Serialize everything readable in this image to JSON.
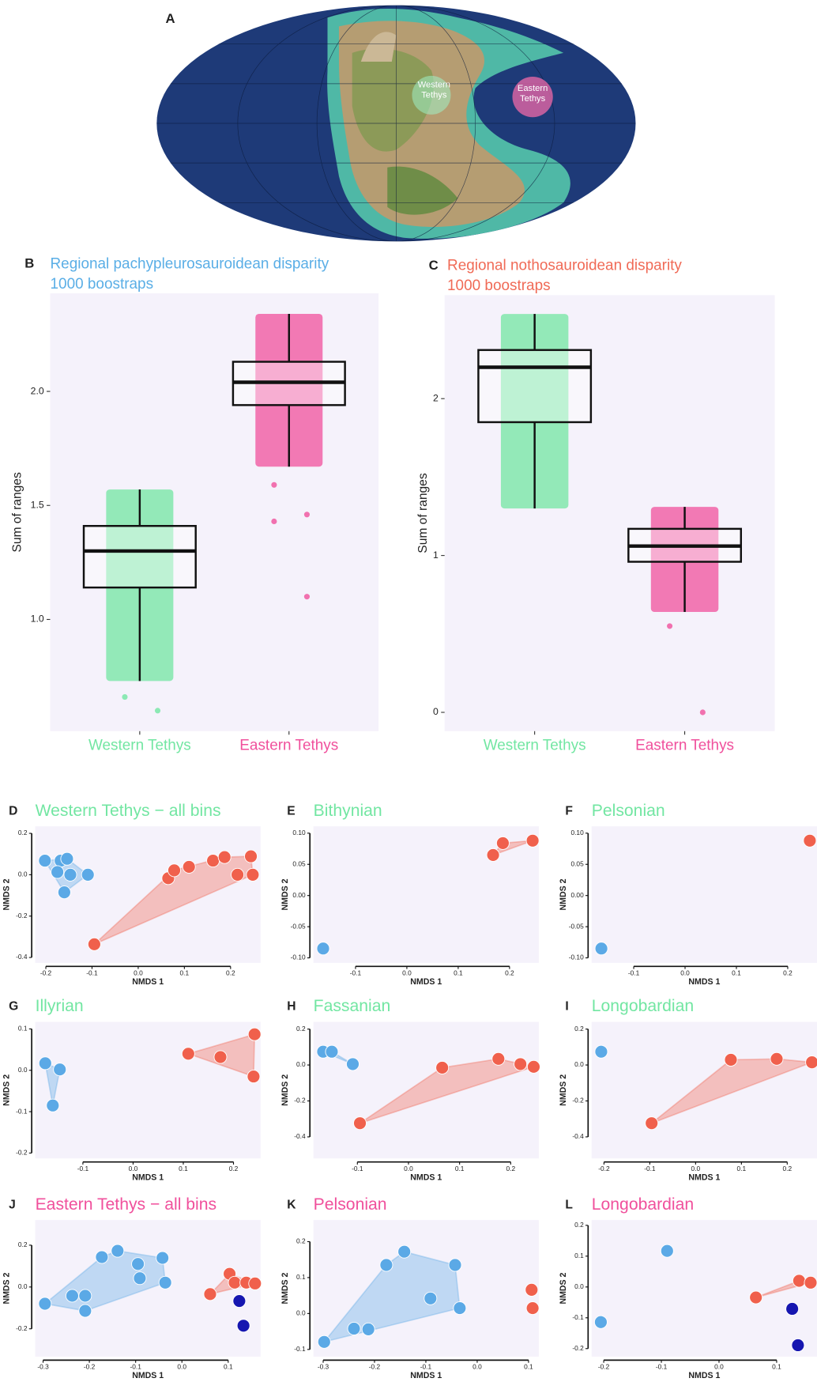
{
  "map": {
    "panel": "A",
    "regions": [
      "Western Tethys",
      "Eastern Tethys"
    ]
  },
  "chart_data": [
    {
      "type": "box",
      "panel": "B",
      "title": "Regional pachypleurosauroidean disparity",
      "subtitle": "1000 boostraps",
      "title_color": "#5aaee6",
      "ylabel": "Sum of ranges",
      "ylim": [
        0.51,
        2.43
      ],
      "yticks": [
        {
          "value": 1,
          "label": "1.0"
        },
        1.5,
        {
          "value": 2,
          "label": "2.0"
        }
      ],
      "categories": [
        "Western Tethys",
        "Eastern Tethys"
      ],
      "colors": [
        "#72e6a2",
        "#f0509c"
      ],
      "boxes": [
        {
          "whisker_low": 0.73,
          "q1": 1.14,
          "median": 1.3,
          "q3": 1.41,
          "whisker_high": 1.57,
          "outliers": [
            0.66,
            0.6
          ]
        },
        {
          "whisker_low": 1.67,
          "q1": 1.94,
          "median": 2.04,
          "q3": 2.13,
          "whisker_high": 2.34,
          "outliers": [
            1.59,
            1.46,
            1.43,
            1.1
          ]
        }
      ]
    },
    {
      "type": "box",
      "panel": "C",
      "title": "Regional nothosauroidean disparity",
      "subtitle": "1000 boostraps",
      "title_color": "#f06a56",
      "ylabel": "Sum of ranges",
      "ylim": [
        -0.12,
        2.66
      ],
      "yticks": [
        0,
        1,
        2
      ],
      "categories": [
        "Western Tethys",
        "Eastern Tethys"
      ],
      "colors": [
        "#72e6a2",
        "#f0509c"
      ],
      "boxes": [
        {
          "whisker_low": 1.3,
          "q1": 1.85,
          "median": 2.2,
          "q3": 2.31,
          "whisker_high": 2.54,
          "outliers": []
        },
        {
          "whisker_low": 0.64,
          "q1": 0.96,
          "median": 1.06,
          "q3": 1.17,
          "whisker_high": 1.31,
          "outliers": [
            0.55,
            0
          ]
        }
      ]
    },
    {
      "type": "scatter",
      "panel": "D",
      "title": "Western Tethys − all bins",
      "title_color": "#72e6a2",
      "xlabel": "NMDS 1",
      "ylabel": "NMDS 2",
      "xlim": [
        -0.223,
        0.265
      ],
      "ylim": [
        -0.426,
        0.234
      ],
      "xticks": [
        -0.2,
        -0.1,
        {
          "value": 0,
          "label": "0.0"
        },
        0.1,
        0.2
      ],
      "yticks": [
        -0.4,
        -0.2,
        {
          "value": 0,
          "label": "0.0"
        },
        0.2
      ],
      "series": [
        {
          "color": "#5ba9e6",
          "hull": true,
          "x": [
            -0.202,
            -0.168,
            -0.154,
            -0.175,
            -0.147,
            -0.109,
            -0.16
          ],
          "y": [
            0.068,
            0.068,
            0.077,
            0.013,
            0.0,
            0.0,
            -0.085
          ]
        },
        {
          "color": "#f0604c",
          "hull": true,
          "x": [
            -0.095,
            0.065,
            0.078,
            0.11,
            0.162,
            0.187,
            0.215,
            0.244,
            0.248
          ],
          "y": [
            -0.336,
            -0.017,
            0.021,
            0.038,
            0.068,
            0.085,
            0.0,
            0.089,
            0.0
          ]
        }
      ]
    },
    {
      "type": "scatter",
      "panel": "E",
      "title": "Bithynian",
      "title_color": "#72e6a2",
      "xlabel": "NMDS 1",
      "ylabel": "NMDS 2",
      "xlim": [
        -0.182,
        0.257
      ],
      "ylim": [
        -0.108,
        0.111
      ],
      "xticks": [
        -0.1,
        {
          "value": 0,
          "label": "0.0"
        },
        0.1,
        0.2
      ],
      "yticks": [
        {
          "value": -0.1,
          "label": "-0.10"
        },
        -0.05,
        {
          "value": 0,
          "label": "0.00"
        },
        0.05,
        {
          "value": 0.1,
          "label": "0.10"
        }
      ],
      "series": [
        {
          "color": "#5ba9e6",
          "hull": false,
          "x": [
            -0.163
          ],
          "y": [
            -0.085
          ]
        },
        {
          "color": "#f0604c",
          "hull": true,
          "x": [
            0.168,
            0.187,
            0.245
          ],
          "y": [
            0.065,
            0.084,
            0.088
          ]
        }
      ]
    },
    {
      "type": "scatter",
      "panel": "F",
      "title": "Pelsonian",
      "title_color": "#72e6a2",
      "xlabel": "NMDS 1",
      "ylabel": "NMDS 2",
      "xlim": [
        -0.182,
        0.257
      ],
      "ylim": [
        -0.108,
        0.111
      ],
      "xticks": [
        -0.1,
        {
          "value": 0,
          "label": "0.0"
        },
        0.1,
        0.2
      ],
      "yticks": [
        {
          "value": -0.1,
          "label": "-0.10"
        },
        -0.05,
        {
          "value": 0,
          "label": "0.00"
        },
        0.05,
        {
          "value": 0.1,
          "label": "0.10"
        }
      ],
      "series": [
        {
          "color": "#5ba9e6",
          "hull": false,
          "x": [
            -0.163
          ],
          "y": [
            -0.085
          ]
        },
        {
          "color": "#f0604c",
          "hull": false,
          "x": [
            0.243
          ],
          "y": [
            0.088
          ]
        }
      ]
    },
    {
      "type": "scatter",
      "panel": "G",
      "title": "Illyrian",
      "title_color": "#72e6a2",
      "xlabel": "NMDS 1",
      "ylabel": "NMDS 2",
      "xlim": [
        -0.195,
        0.254
      ],
      "ylim": [
        -0.213,
        0.117
      ],
      "xticks": [
        -0.1,
        {
          "value": 0,
          "label": "0.0"
        },
        0.1,
        0.2
      ],
      "yticks": [
        -0.2,
        -0.1,
        {
          "value": 0,
          "label": "0.0"
        },
        0.1
      ],
      "series": [
        {
          "color": "#5ba9e6",
          "hull": true,
          "x": [
            -0.175,
            -0.146,
            -0.16
          ],
          "y": [
            0.017,
            0.002,
            -0.085
          ]
        },
        {
          "color": "#f0604c",
          "hull": true,
          "x": [
            0.11,
            0.174,
            0.242,
            0.24
          ],
          "y": [
            0.04,
            0.032,
            0.087,
            -0.015
          ]
        }
      ]
    },
    {
      "type": "scatter",
      "panel": "H",
      "title": "Fassanian",
      "title_color": "#72e6a2",
      "xlabel": "NMDS 1",
      "ylabel": "NMDS 2",
      "xlim": [
        -0.186,
        0.255
      ],
      "ylim": [
        -0.52,
        0.24
      ],
      "xticks": [
        -0.1,
        {
          "value": 0,
          "label": "0.0"
        },
        0.1,
        0.2
      ],
      "yticks": [
        -0.4,
        -0.2,
        {
          "value": 0,
          "label": "0.0"
        },
        0.2
      ],
      "series": [
        {
          "color": "#5ba9e6",
          "hull": true,
          "x": [
            -0.167,
            -0.15,
            -0.109
          ],
          "y": [
            0.074,
            0.074,
            0.005
          ]
        },
        {
          "color": "#f0604c",
          "hull": true,
          "x": [
            -0.095,
            0.066,
            0.176,
            0.219,
            0.245
          ],
          "y": [
            -0.324,
            -0.015,
            0.034,
            0.005,
            -0.01
          ]
        }
      ]
    },
    {
      "type": "scatter",
      "panel": "I",
      "title": "Longobardian",
      "title_color": "#72e6a2",
      "xlabel": "NMDS 1",
      "ylabel": "NMDS 2",
      "xlim": [
        -0.227,
        0.265
      ],
      "ylim": [
        -0.52,
        0.24
      ],
      "xticks": [
        -0.2,
        -0.1,
        {
          "value": 0,
          "label": "0.0"
        },
        0.1,
        0.2
      ],
      "yticks": [
        -0.4,
        -0.2,
        {
          "value": 0,
          "label": "0.0"
        },
        0.2
      ],
      "series": [
        {
          "color": "#5ba9e6",
          "hull": false,
          "x": [
            -0.206
          ],
          "y": [
            0.074
          ]
        },
        {
          "color": "#f0604c",
          "hull": true,
          "x": [
            -0.096,
            0.077,
            0.177,
            0.254
          ],
          "y": [
            -0.324,
            0.029,
            0.034,
            0.015
          ]
        }
      ]
    },
    {
      "type": "scatter",
      "panel": "J",
      "title": "Eastern Tethys − all bins",
      "title_color": "#f0509c",
      "xlabel": "NMDS 1",
      "ylabel": "NMDS 2",
      "xlim": [
        -0.317,
        0.17
      ],
      "ylim": [
        -0.333,
        0.32
      ],
      "xticks": [
        -0.3,
        -0.2,
        -0.1,
        {
          "value": 0,
          "label": "0.0"
        },
        0.1
      ],
      "yticks": [
        -0.2,
        {
          "value": 0,
          "label": "0.0"
        },
        0.2
      ],
      "series": [
        {
          "color": "#5ba9e6",
          "hull": true,
          "x": [
            -0.296,
            -0.237,
            -0.209,
            -0.209,
            -0.173,
            -0.139,
            -0.095,
            -0.091,
            -0.042,
            -0.036
          ],
          "y": [
            -0.08,
            -0.042,
            -0.042,
            -0.114,
            0.143,
            0.173,
            0.11,
            0.042,
            0.139,
            0.021
          ]
        },
        {
          "color": "#f0604c",
          "hull": true,
          "x": [
            0.061,
            0.103,
            0.114,
            0.139,
            0.158
          ],
          "y": [
            -0.034,
            0.063,
            0.021,
            0.021,
            0.017
          ]
        },
        {
          "color": "#1616b0",
          "hull": false,
          "x": [
            0.124,
            0.133
          ],
          "y": [
            -0.067,
            -0.185
          ]
        }
      ]
    },
    {
      "type": "scatter",
      "panel": "K",
      "title": "Pelsonian",
      "title_color": "#f0509c",
      "xlabel": "NMDS 1",
      "ylabel": "NMDS 2",
      "xlim": [
        -0.319,
        0.12
      ],
      "ylim": [
        -0.12,
        0.26
      ],
      "xticks": [
        -0.3,
        -0.2,
        -0.1,
        {
          "value": 0,
          "label": "0.0"
        },
        0.1
      ],
      "yticks": [
        -0.1,
        {
          "value": 0,
          "label": "0.0"
        },
        0.1,
        0.2
      ],
      "series": [
        {
          "color": "#5ba9e6",
          "hull": true,
          "x": [
            -0.298,
            -0.24,
            -0.212,
            -0.177,
            -0.142,
            -0.091,
            -0.043,
            -0.034
          ],
          "y": [
            -0.079,
            -0.042,
            -0.044,
            0.135,
            0.172,
            0.042,
            0.135,
            0.015
          ]
        },
        {
          "color": "#f0604c",
          "hull": false,
          "x": [
            0.106,
            0.108
          ],
          "y": [
            0.066,
            0.015
          ]
        }
      ]
    },
    {
      "type": "scatter",
      "panel": "L",
      "title": "Longobardian",
      "title_color": "#f0509c",
      "xlabel": "NMDS 1",
      "ylabel": "NMDS 2",
      "xlim": [
        -0.221,
        0.17
      ],
      "ylim": [
        -0.226,
        0.217
      ],
      "xticks": [
        -0.2,
        -0.1,
        {
          "value": 0,
          "label": "0.0"
        },
        0.1
      ],
      "yticks": [
        -0.2,
        -0.1,
        {
          "value": 0,
          "label": "0.0"
        },
        0.1,
        0.2
      ],
      "series": [
        {
          "color": "#5ba9e6",
          "hull": false,
          "x": [
            -0.205,
            -0.09
          ],
          "y": [
            -0.114,
            0.117
          ]
        },
        {
          "color": "#f0604c",
          "hull": true,
          "x": [
            0.064,
            0.139,
            0.159
          ],
          "y": [
            -0.034,
            0.02,
            0.014
          ]
        },
        {
          "color": "#1616b0",
          "hull": false,
          "x": [
            0.127,
            0.137
          ],
          "y": [
            -0.071,
            -0.189
          ]
        }
      ]
    }
  ]
}
